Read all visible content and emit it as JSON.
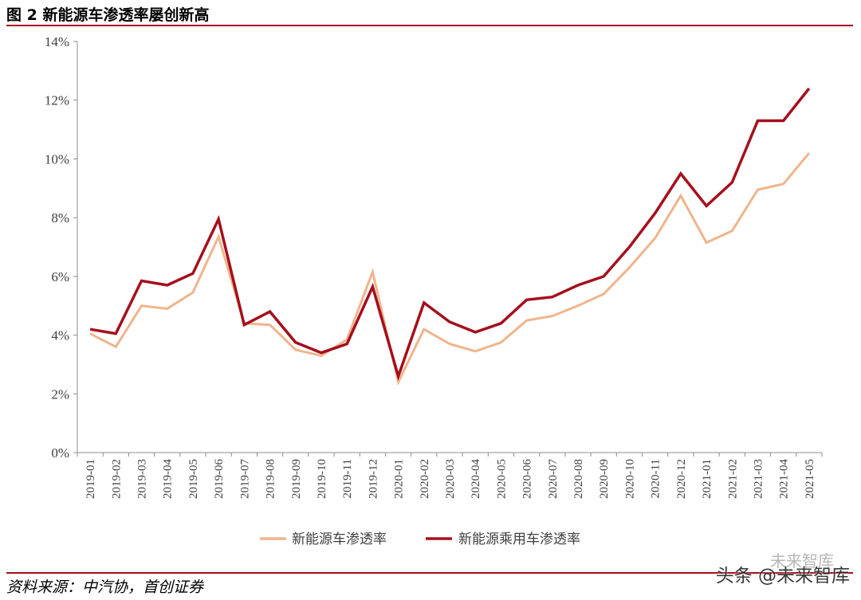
{
  "figure": {
    "title": "图 2 新能源车渗透率屡创新高",
    "source": "资料来源：中汽协，首创证券",
    "watermark": "头条 @未来智库",
    "watermark_faint": "未来智库"
  },
  "chart_data": {
    "type": "line",
    "title": "",
    "xlabel": "",
    "ylabel": "",
    "ylim": [
      0,
      14
    ],
    "y_ticks": [
      0,
      2,
      4,
      6,
      8,
      10,
      12,
      14
    ],
    "y_tick_labels": [
      "0%",
      "2%",
      "4%",
      "6%",
      "8%",
      "10%",
      "12%",
      "14%"
    ],
    "legend_position": "bottom-center",
    "grid": false,
    "categories": [
      "2019-01",
      "2019-02",
      "2019-03",
      "2019-04",
      "2019-05",
      "2019-06",
      "2019-07",
      "2019-08",
      "2019-09",
      "2019-10",
      "2019-11",
      "2019-12",
      "2020-01",
      "2020-02",
      "2020-03",
      "2020-04",
      "2020-05",
      "2020-06",
      "2020-07",
      "2020-08",
      "2020-09",
      "2020-10",
      "2020-11",
      "2020-12",
      "2021-01",
      "2021-02",
      "2021-03",
      "2021-04",
      "2021-05"
    ],
    "series": [
      {
        "name": "新能源车渗透率",
        "color": "#f0b48c",
        "values": [
          4.05,
          3.6,
          5.0,
          4.9,
          5.45,
          7.35,
          4.4,
          4.35,
          3.5,
          3.3,
          3.85,
          6.15,
          2.4,
          4.2,
          3.7,
          3.45,
          3.75,
          4.5,
          4.65,
          5.0,
          5.4,
          6.3,
          7.3,
          8.75,
          7.15,
          7.55,
          8.95,
          9.15,
          10.2
        ]
      },
      {
        "name": "新能源乘用车渗透率",
        "color": "#a50f1c",
        "values": [
          4.2,
          4.05,
          5.85,
          5.7,
          6.1,
          7.95,
          4.35,
          4.8,
          3.75,
          3.4,
          3.7,
          5.65,
          2.6,
          5.1,
          4.45,
          4.1,
          4.4,
          5.2,
          5.3,
          5.7,
          6.0,
          7.0,
          8.15,
          9.5,
          8.4,
          9.2,
          11.3,
          11.3,
          12.4
        ]
      }
    ]
  }
}
